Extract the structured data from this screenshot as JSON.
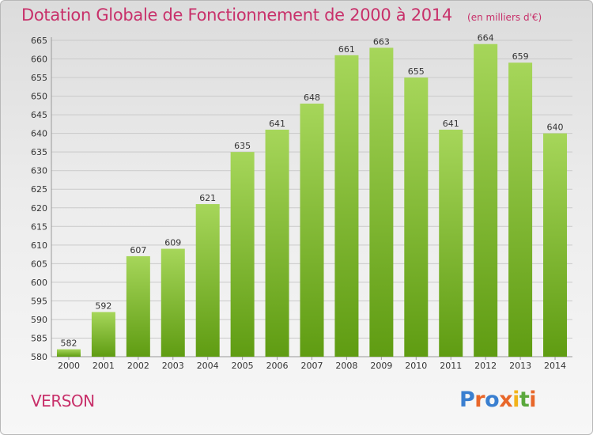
{
  "header": {
    "title": "Dotation Globale de Fonctionnement de 2000 à 2014",
    "unit": "(en milliers d'€)"
  },
  "footer": {
    "commune": "VERSON",
    "brand": "Proxiti"
  },
  "colors": {
    "title": "#c8306a",
    "bar_light": "#a6d65a",
    "bar_dark": "#5f9c12",
    "logo_letters": [
      "#3a7fd0",
      "#e8672a",
      "#3a7fd0",
      "#e8672a",
      "#f2b31a",
      "#5aa83c",
      "#e8672a"
    ]
  },
  "chart_data": {
    "type": "bar",
    "title": "Dotation Globale de Fonctionnement de 2000 à 2014",
    "subtitle": "(en milliers d'€)",
    "xlabel": "",
    "ylabel": "",
    "categories": [
      "2000",
      "2001",
      "2002",
      "2003",
      "2004",
      "2005",
      "2006",
      "2007",
      "2008",
      "2009",
      "2010",
      "2011",
      "2012",
      "2013",
      "2014"
    ],
    "values": [
      582,
      592,
      607,
      609,
      621,
      635,
      641,
      648,
      661,
      663,
      655,
      641,
      664,
      659,
      640
    ],
    "ylim": [
      580,
      665
    ],
    "yticks": [
      580,
      585,
      590,
      595,
      600,
      605,
      610,
      615,
      620,
      625,
      630,
      635,
      640,
      645,
      650,
      655,
      660,
      665
    ],
    "grid": true,
    "data_labels": true
  }
}
